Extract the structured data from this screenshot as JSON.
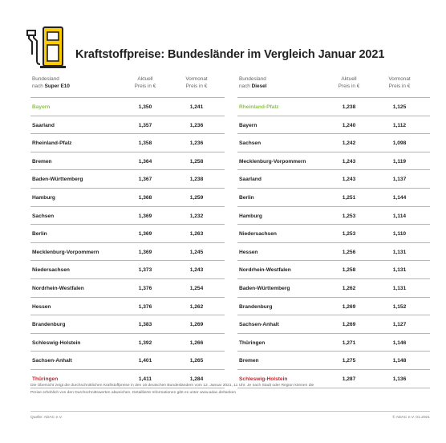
{
  "title": "Kraftstoffpreise: Bundesländer im Vergleich Januar 2021",
  "pump_icon": "fuel-pump-icon",
  "colors": {
    "yellow": "#ffcc00",
    "best": "#8dc63f",
    "worst": "#d6202a"
  },
  "left_table": {
    "headers": {
      "col1_line1": "Bundesland",
      "col1_line2_prefix": "nach ",
      "col1_line2_bold": "Super E10",
      "col2_line1": "Aktuell",
      "col2_line2": "Preis in €",
      "col3_line1": "Vormonat",
      "col3_line2": "Preis in €"
    },
    "rows": [
      {
        "name": "Bayern",
        "current": "1,350",
        "previous": "1,241",
        "highlight": "best"
      },
      {
        "name": "Saarland",
        "current": "1,357",
        "previous": "1,236"
      },
      {
        "name": "Rheinland-Pfalz",
        "current": "1,358",
        "previous": "1,236"
      },
      {
        "name": "Bremen",
        "current": "1,364",
        "previous": "1,258"
      },
      {
        "name": "Baden-Württemberg",
        "current": "1,367",
        "previous": "1,238"
      },
      {
        "name": "Hamburg",
        "current": "1,368",
        "previous": "1,259"
      },
      {
        "name": "Sachsen",
        "current": "1,369",
        "previous": "1,232"
      },
      {
        "name": "Berlin",
        "current": "1,369",
        "previous": "1,263"
      },
      {
        "name": "Mecklenburg-Vorpommern",
        "current": "1,369",
        "previous": "1,245"
      },
      {
        "name": "Niedersachsen",
        "current": "1,373",
        "previous": "1,243"
      },
      {
        "name": "Nordrhein-Westfalen",
        "current": "1,376",
        "previous": "1,254"
      },
      {
        "name": "Hessen",
        "current": "1,376",
        "previous": "1,262"
      },
      {
        "name": "Brandenburg",
        "current": "1,383",
        "previous": "1,269"
      },
      {
        "name": "Schleswig-Holstein",
        "current": "1,392",
        "previous": "1,266"
      },
      {
        "name": "Sachsen-Anhalt",
        "current": "1,401",
        "previous": "1,265"
      },
      {
        "name": "Thüringen",
        "current": "1,411",
        "previous": "1,284",
        "highlight": "worst"
      }
    ]
  },
  "right_table": {
    "headers": {
      "col1_line1": "Bundesland",
      "col1_line2_prefix": "nach ",
      "col1_line2_bold": "Diesel",
      "col2_line1": "Aktuell",
      "col2_line2": "Preis in €",
      "col3_line1": "Vormonat",
      "col3_line2": "Preis in €"
    },
    "rows": [
      {
        "name": "Rheinland-Pfalz",
        "current": "1,238",
        "previous": "1,125",
        "highlight": "best"
      },
      {
        "name": "Bayern",
        "current": "1,240",
        "previous": "1,112"
      },
      {
        "name": "Sachsen",
        "current": "1,242",
        "previous": "1,098"
      },
      {
        "name": "Mecklenburg-Vorpommern",
        "current": "1,243",
        "previous": "1,119"
      },
      {
        "name": "Saarland",
        "current": "1,243",
        "previous": "1,137"
      },
      {
        "name": "Berlin",
        "current": "1,251",
        "previous": "1,144"
      },
      {
        "name": "Hamburg",
        "current": "1,253",
        "previous": "1,114"
      },
      {
        "name": "Niedersachsen",
        "current": "1,253",
        "previous": "1,110"
      },
      {
        "name": "Hessen",
        "current": "1,256",
        "previous": "1,131"
      },
      {
        "name": "Nordrhein-Westfalen",
        "current": "1,258",
        "previous": "1,131"
      },
      {
        "name": "Baden-Württemberg",
        "current": "1,262",
        "previous": "1,131"
      },
      {
        "name": "Brandenburg",
        "current": "1,269",
        "previous": "1,152"
      },
      {
        "name": "Sachsen-Anhalt",
        "current": "1,269",
        "previous": "1,127"
      },
      {
        "name": "Thüringen",
        "current": "1,271",
        "previous": "1,146"
      },
      {
        "name": "Bremen",
        "current": "1,275",
        "previous": "1,148"
      },
      {
        "name": "Schleswig-Holstein",
        "current": "1,287",
        "previous": "1,136",
        "highlight": "worst"
      }
    ]
  },
  "footnote_line1": "Die Übersicht zeigt die durchschnittlichen Kraftstoffpreise in den 16 deutschen Bundesländern vom 12. Januar 2021, 11 Uhr. Je nach Stadt oder Region können die",
  "footnote_line2": "Preise erheblich von den Durchschnittswerten abweichen. Detaillierte Informationen gibt es unter www.adac.de/tanken",
  "source": "Quelle: ADAC e.V.",
  "copyright": "© ADAC e.V. 01.2021"
}
